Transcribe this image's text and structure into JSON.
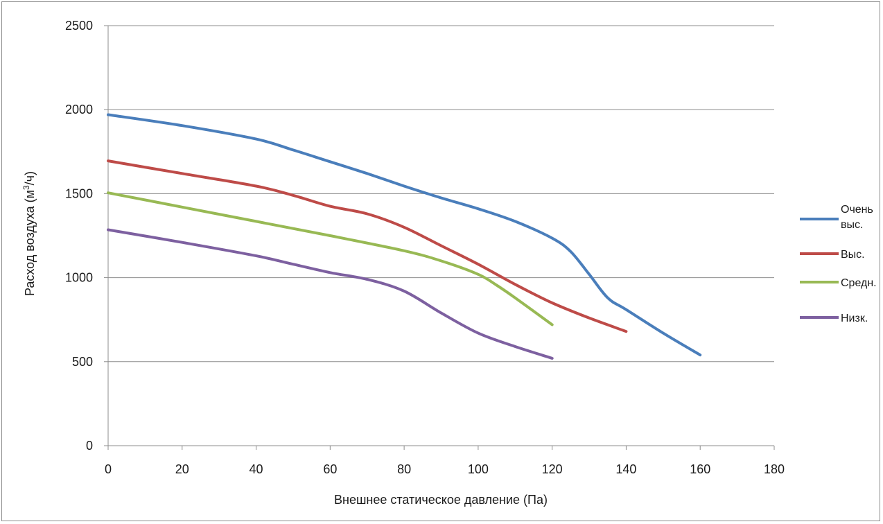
{
  "chart_data": {
    "type": "line",
    "title": "",
    "xlabel": "Внешнее статическое давление (Па)",
    "ylabel_main": "Расход воздуха (м",
    "ylabel_sup": "3",
    "ylabel_tail": "/ч)",
    "xlim": [
      0,
      180
    ],
    "ylim": [
      0,
      2500
    ],
    "x_ticks": [
      "0",
      "20",
      "40",
      "60",
      "80",
      "100",
      "120",
      "140",
      "160",
      "180"
    ],
    "y_ticks": [
      "0",
      "500",
      "1000",
      "1500",
      "2000",
      "2500"
    ],
    "grid": "horizontal",
    "legend_position": "right",
    "series": [
      {
        "name_lines": [
          "Очень",
          "выс."
        ],
        "color": "#4a7ebb",
        "x": [
          0,
          20,
          40,
          50,
          60,
          70,
          80,
          90,
          100,
          110,
          120,
          125,
          130,
          135,
          140,
          150,
          160
        ],
        "y": [
          1970,
          1905,
          1825,
          1760,
          1690,
          1620,
          1545,
          1475,
          1410,
          1335,
          1235,
          1155,
          1020,
          880,
          810,
          670,
          540
        ]
      },
      {
        "name_lines": [
          "Выс."
        ],
        "color": "#be4b48",
        "x": [
          0,
          20,
          40,
          50,
          60,
          70,
          80,
          90,
          100,
          110,
          120,
          130,
          140
        ],
        "y": [
          1695,
          1620,
          1545,
          1490,
          1425,
          1380,
          1300,
          1190,
          1080,
          960,
          850,
          760,
          680
        ]
      },
      {
        "name_lines": [
          "Средн."
        ],
        "color": "#98b954",
        "x": [
          0,
          20,
          40,
          60,
          80,
          90,
          100,
          105,
          110,
          120
        ],
        "y": [
          1505,
          1420,
          1335,
          1250,
          1160,
          1100,
          1020,
          955,
          880,
          720
        ]
      },
      {
        "name_lines": [
          "Низк."
        ],
        "color": "#7d60a0",
        "x": [
          0,
          20,
          40,
          50,
          60,
          70,
          80,
          90,
          100,
          110,
          120
        ],
        "y": [
          1285,
          1210,
          1130,
          1080,
          1030,
          990,
          920,
          790,
          670,
          590,
          520
        ]
      }
    ]
  }
}
